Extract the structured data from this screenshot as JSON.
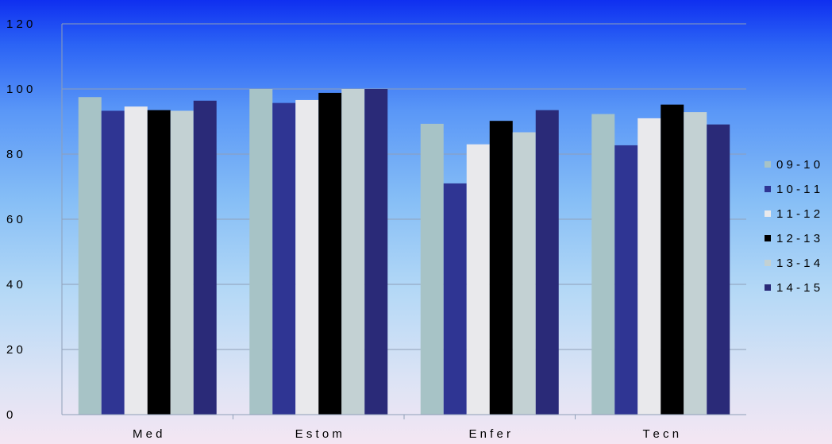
{
  "chart_data": {
    "type": "bar",
    "title": "",
    "xlabel": "",
    "ylabel": "",
    "ylim": [
      0,
      120
    ],
    "yticks": [
      0,
      20,
      40,
      60,
      80,
      100,
      120
    ],
    "ytick_labels": [
      "0",
      "2 0",
      "4 0",
      "6 0",
      "8 0",
      "1 0 0",
      "1 2 0"
    ],
    "grid": "horizontal",
    "legend_position": "right",
    "categories": [
      "Med",
      "Estom",
      "Enfer",
      "Tecn"
    ],
    "category_labels": [
      "M e d",
      "E s t o m",
      "E n f e r",
      "T e c n"
    ],
    "series": [
      {
        "name": "09-10",
        "label": "0 9 - 1 0",
        "color": "#a7c3c6",
        "values": [
          97.5,
          100,
          89.3,
          92.3
        ]
      },
      {
        "name": "10-11",
        "label": "1 0 - 1 1",
        "color": "#2f3593",
        "values": [
          93.3,
          95.7,
          71.0,
          82.7
        ]
      },
      {
        "name": "11-12",
        "label": "1 1 - 1 2",
        "color": "#e9e9ec",
        "values": [
          94.6,
          96.6,
          83.0,
          91.0
        ]
      },
      {
        "name": "12-13",
        "label": "1 2 - 1 3",
        "color": "#000000",
        "values": [
          93.5,
          98.8,
          90.2,
          95.2
        ]
      },
      {
        "name": "13-14",
        "label": "1 3 - 1 4",
        "color": "#c3d1d3",
        "values": [
          93.3,
          100,
          86.7,
          92.9
        ]
      },
      {
        "name": "14-15",
        "label": "1 4 - 1 5",
        "color": "#2a2a78",
        "values": [
          96.4,
          100,
          93.5,
          89.1
        ]
      }
    ]
  }
}
